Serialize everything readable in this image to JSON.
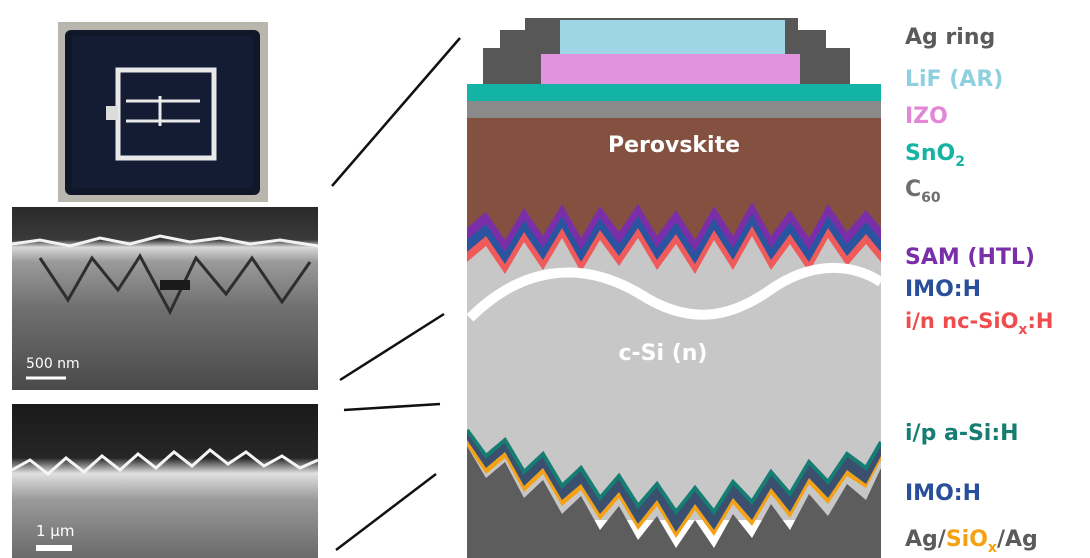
{
  "photos": {
    "sem_top": {
      "scalebar": "500 nm"
    },
    "sem_bottom": {
      "scalebar": "1 μm"
    }
  },
  "stack": {
    "perovskite_label": "Perovskite",
    "csi_label": "c-Si (n)"
  },
  "legend": [
    {
      "label": "Ag ring",
      "color": "#5b5b5b"
    },
    {
      "label": "LiF (AR)",
      "color": "#8ecfe0"
    },
    {
      "label": "IZO",
      "color": "#e386d6"
    },
    {
      "label": "SnO",
      "sub": "2",
      "color": "#14b3a3"
    },
    {
      "label": "C",
      "sub": "60",
      "color": "#6e6e6e"
    },
    {
      "label": "SAM (HTL)",
      "color": "#7a2fa8"
    },
    {
      "label": "IMO:H",
      "color": "#2a4f9a"
    },
    {
      "label": "i/n nc-SiO",
      "sub": "x",
      "tail": ":H",
      "color": "#ef4d4d"
    },
    {
      "label": "i/p a-Si:H",
      "color": "#157d72"
    },
    {
      "label": "IMO:H",
      "color": "#2a4f9a"
    },
    {
      "label": "Ag/",
      "mid": "SiO",
      "midsub": "x",
      "tail": "/Ag",
      "color": "#5b5b5b",
      "midcolor": "#f4a114"
    }
  ]
}
